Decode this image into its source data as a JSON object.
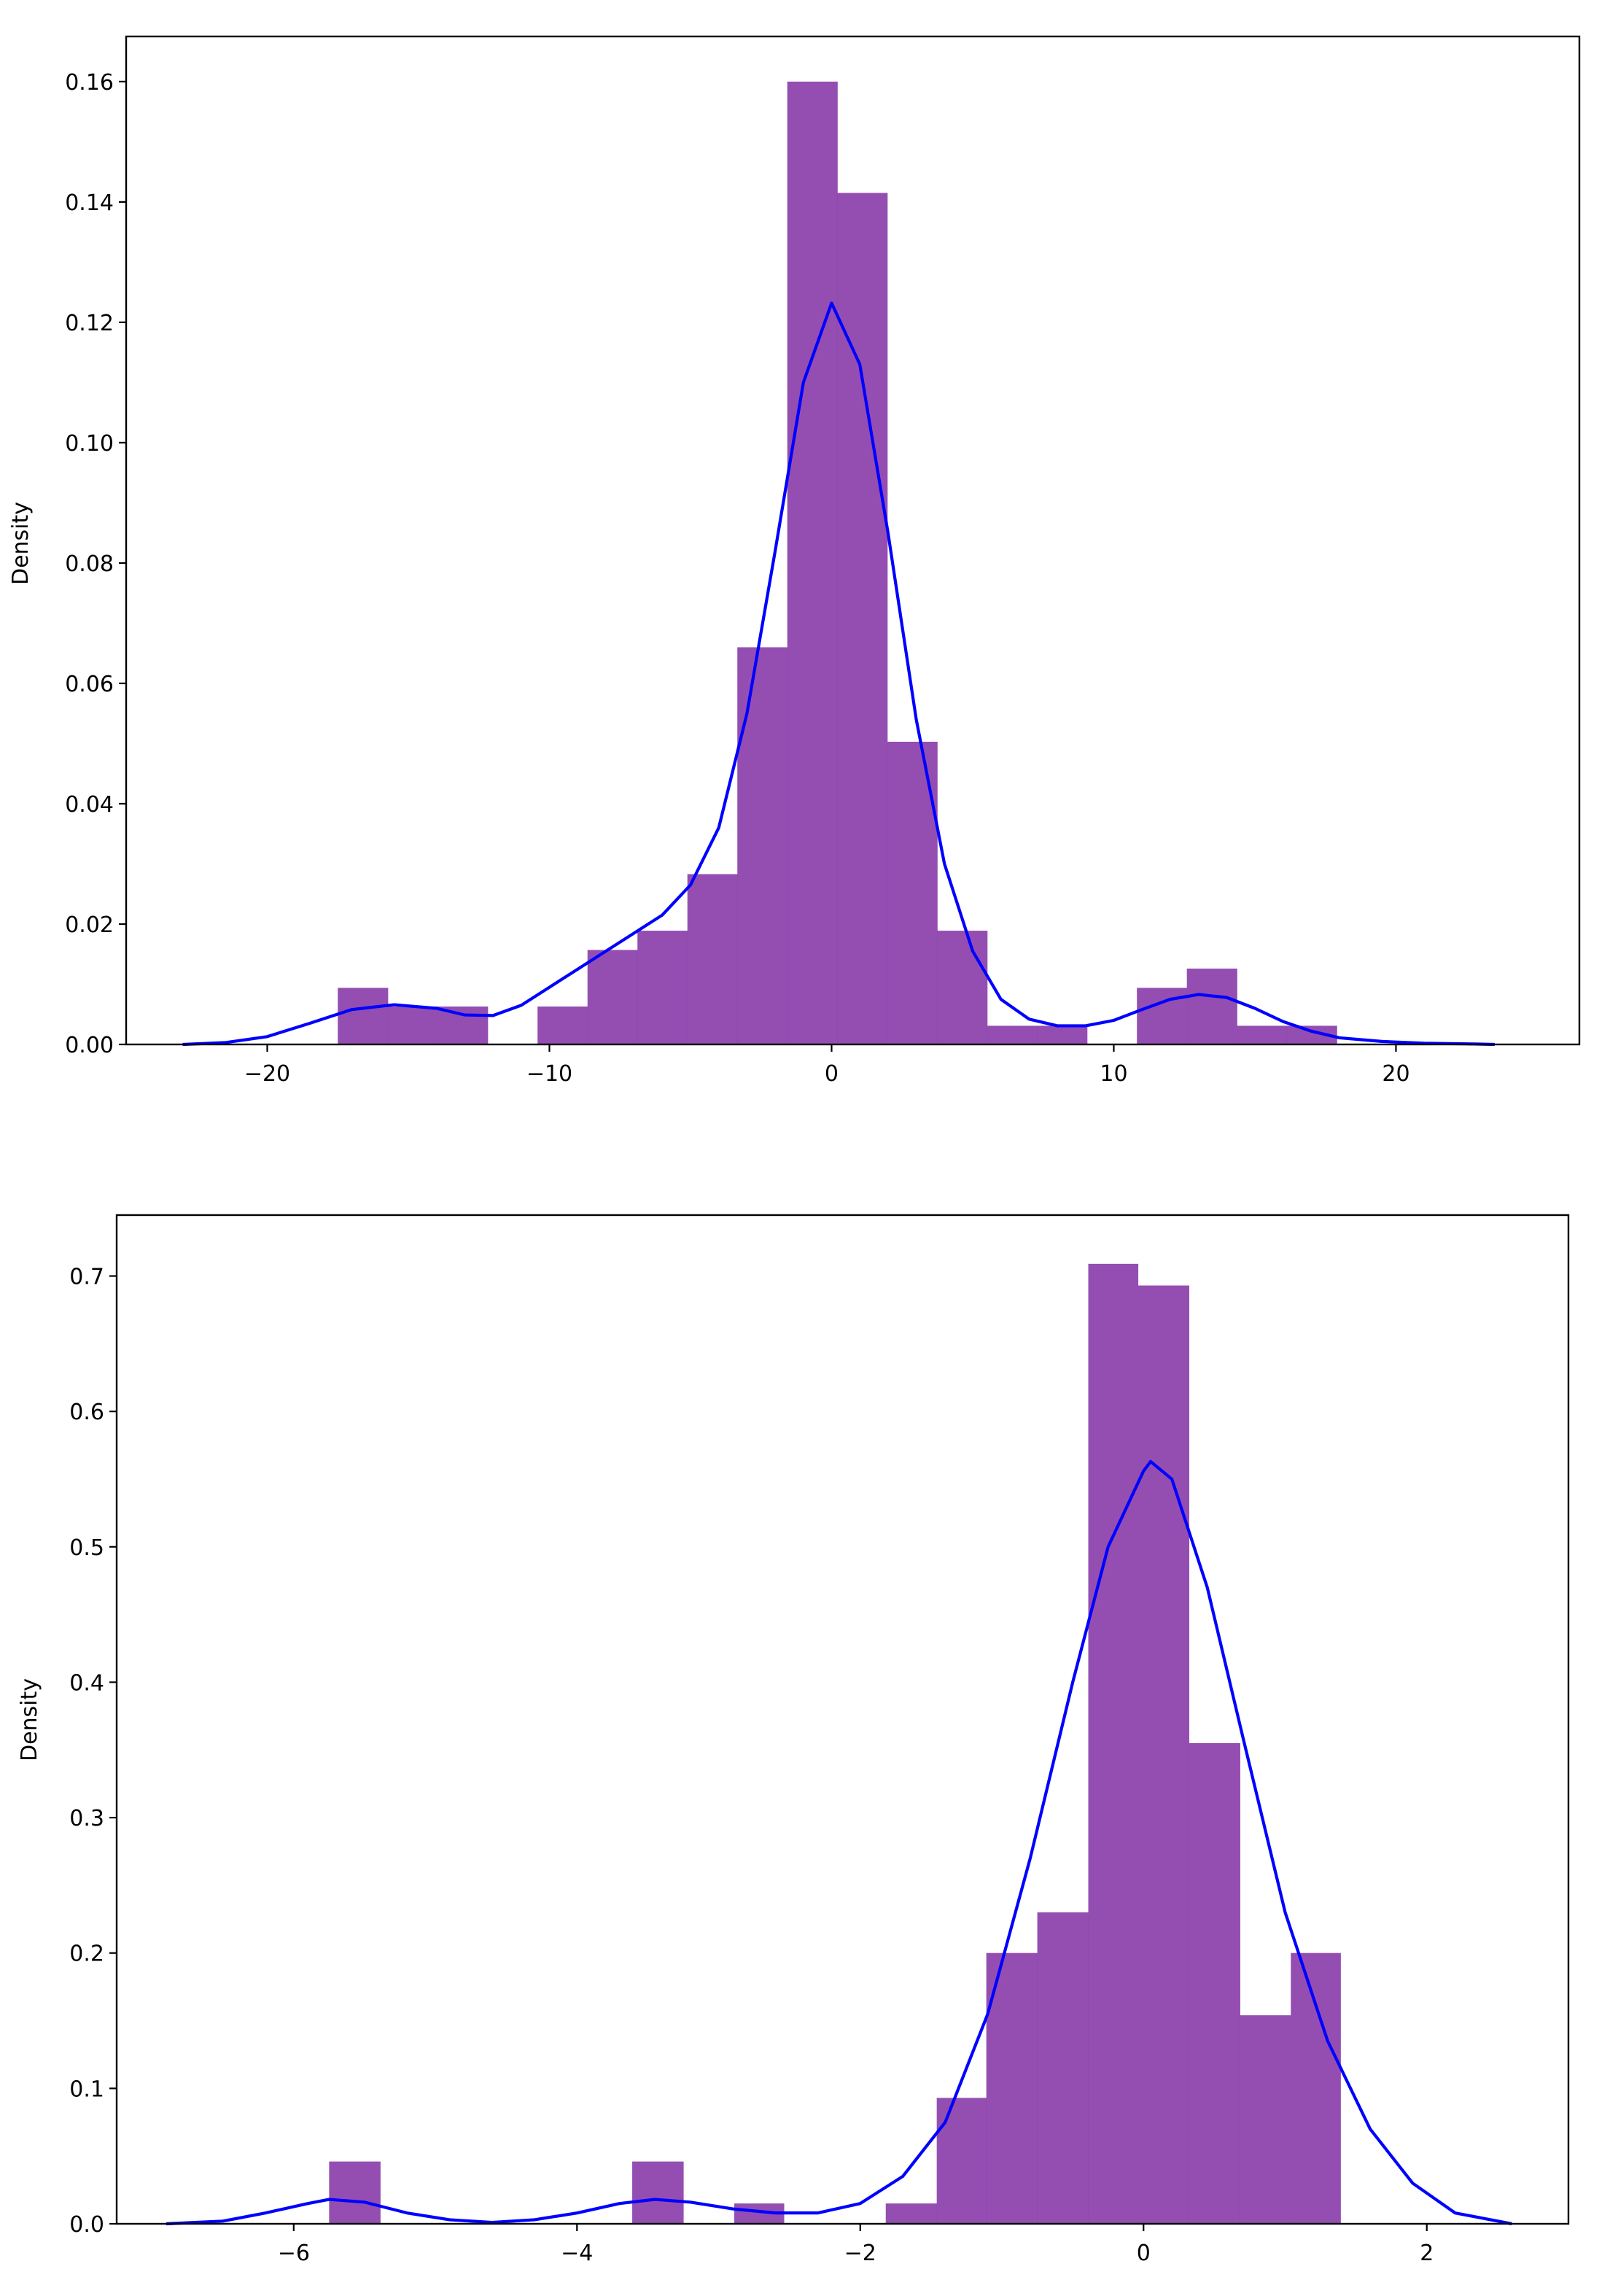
{
  "chart_data": [
    {
      "type": "bar",
      "subtype": "histogram-with-kde",
      "title": "",
      "xlabel": "",
      "ylabel": "Density",
      "xlim": [
        -25,
        26.5
      ],
      "ylim": [
        0,
        0.1675
      ],
      "xticks": [
        -20,
        -10,
        0,
        10,
        20
      ],
      "xtick_labels": [
        "−20",
        "−10",
        "0",
        "10",
        "20"
      ],
      "yticks": [
        0.0,
        0.02,
        0.04,
        0.06,
        0.08,
        0.1,
        0.12,
        0.14,
        0.16
      ],
      "ytick_labels": [
        "0.00",
        "0.02",
        "0.04",
        "0.06",
        "0.08",
        "0.10",
        "0.12",
        "0.14",
        "0.16"
      ],
      "grid": false,
      "bar_color": "#8e44ad",
      "line_color": "#0000ff",
      "bins": [
        {
          "x0": -17.5,
          "x1": -15.73,
          "density": 0.0094
        },
        {
          "x0": -15.73,
          "x1": -13.96,
          "density": 0.0063
        },
        {
          "x0": -13.96,
          "x1": -12.19,
          "density": 0.0063
        },
        {
          "x0": -12.19,
          "x1": -10.42,
          "density": 0.0
        },
        {
          "x0": -10.42,
          "x1": -8.65,
          "density": 0.0063
        },
        {
          "x0": -8.65,
          "x1": -6.88,
          "density": 0.0157
        },
        {
          "x0": -6.88,
          "x1": -5.11,
          "density": 0.0189
        },
        {
          "x0": -5.11,
          "x1": -3.34,
          "density": 0.0283
        },
        {
          "x0": -3.34,
          "x1": -1.57,
          "density": 0.066
        },
        {
          "x0": -1.57,
          "x1": 0.2,
          "density": 0.16
        },
        {
          "x0": 0.2,
          "x1": 1.97,
          "density": 0.1415
        },
        {
          "x0": 1.97,
          "x1": 3.74,
          "density": 0.0503
        },
        {
          "x0": 3.74,
          "x1": 5.51,
          "density": 0.0189
        },
        {
          "x0": 5.51,
          "x1": 7.28,
          "density": 0.0031
        },
        {
          "x0": 7.28,
          "x1": 9.05,
          "density": 0.0031
        },
        {
          "x0": 9.05,
          "x1": 10.82,
          "density": 0.0
        },
        {
          "x0": 10.82,
          "x1": 12.59,
          "density": 0.0094
        },
        {
          "x0": 12.59,
          "x1": 14.36,
          "density": 0.0126
        },
        {
          "x0": 14.36,
          "x1": 16.13,
          "density": 0.0031
        },
        {
          "x0": 16.13,
          "x1": 17.9,
          "density": 0.0031
        }
      ],
      "kde": [
        [
          -23.0,
          0.0
        ],
        [
          -21.5,
          0.0003
        ],
        [
          -20.0,
          0.0013
        ],
        [
          -18.5,
          0.0035
        ],
        [
          -17.0,
          0.0058
        ],
        [
          -15.5,
          0.0066
        ],
        [
          -14.0,
          0.006
        ],
        [
          -13.0,
          0.0049
        ],
        [
          -12.0,
          0.0048
        ],
        [
          -11.0,
          0.0065
        ],
        [
          -10.0,
          0.0095
        ],
        [
          -9.0,
          0.0125
        ],
        [
          -8.0,
          0.0155
        ],
        [
          -7.0,
          0.0185
        ],
        [
          -6.0,
          0.0215
        ],
        [
          -5.0,
          0.0265
        ],
        [
          -4.0,
          0.036
        ],
        [
          -3.0,
          0.055
        ],
        [
          -2.0,
          0.082
        ],
        [
          -1.0,
          0.11
        ],
        [
          0.0,
          0.1232
        ],
        [
          1.0,
          0.113
        ],
        [
          2.0,
          0.085
        ],
        [
          3.0,
          0.054
        ],
        [
          4.0,
          0.03
        ],
        [
          5.0,
          0.0155
        ],
        [
          6.0,
          0.0075
        ],
        [
          7.0,
          0.0042
        ],
        [
          8.0,
          0.0031
        ],
        [
          9.0,
          0.0031
        ],
        [
          10.0,
          0.004
        ],
        [
          11.0,
          0.0058
        ],
        [
          12.0,
          0.0075
        ],
        [
          13.0,
          0.0083
        ],
        [
          14.0,
          0.0078
        ],
        [
          15.0,
          0.006
        ],
        [
          16.0,
          0.0038
        ],
        [
          17.0,
          0.0022
        ],
        [
          18.0,
          0.0011
        ],
        [
          19.5,
          0.0005
        ],
        [
          21.0,
          0.0002
        ],
        [
          22.5,
          0.0001
        ],
        [
          23.5,
          0.0
        ]
      ]
    },
    {
      "type": "bar",
      "subtype": "histogram-with-kde",
      "title": "",
      "xlabel": "",
      "ylabel": "Density",
      "xlim": [
        -7.25,
        3.0
      ],
      "ylim": [
        0,
        0.745
      ],
      "xticks": [
        -6,
        -4,
        -2,
        0,
        2
      ],
      "xtick_labels": [
        "−6",
        "−4",
        "−2",
        "0",
        "2"
      ],
      "yticks": [
        0.0,
        0.1,
        0.2,
        0.3,
        0.4,
        0.5,
        0.6,
        0.7
      ],
      "ytick_labels": [
        "0.0",
        "0.1",
        "0.2",
        "0.3",
        "0.4",
        "0.5",
        "0.6",
        "0.7"
      ],
      "grid": false,
      "bar_color": "#8e44ad",
      "line_color": "#0000ff",
      "bins": [
        {
          "x0": -5.75,
          "x1": -5.39,
          "density": 0.046
        },
        {
          "x0": -5.39,
          "x1": -5.04,
          "density": 0.0
        },
        {
          "x0": -5.04,
          "x1": -4.68,
          "density": 0.0
        },
        {
          "x0": -4.68,
          "x1": -4.32,
          "density": 0.0
        },
        {
          "x0": -4.32,
          "x1": -3.96,
          "density": 0.0
        },
        {
          "x0": -3.96,
          "x1": -3.61,
          "density": 0.0
        },
        {
          "x0": -3.61,
          "x1": -3.25,
          "density": 0.046
        },
        {
          "x0": -3.25,
          "x1": -2.89,
          "density": 0.0
        },
        {
          "x0": -2.89,
          "x1": -2.54,
          "density": 0.015
        },
        {
          "x0": -2.54,
          "x1": -2.18,
          "density": 0.0
        },
        {
          "x0": -2.18,
          "x1": -1.82,
          "density": 0.0
        },
        {
          "x0": -1.82,
          "x1": -1.46,
          "density": 0.015
        },
        {
          "x0": -1.46,
          "x1": -1.11,
          "density": 0.093
        },
        {
          "x0": -1.11,
          "x1": -0.75,
          "density": 0.2
        },
        {
          "x0": -0.75,
          "x1": -0.39,
          "density": 0.23
        },
        {
          "x0": -0.39,
          "x1": -0.04,
          "density": 0.709
        },
        {
          "x0": -0.04,
          "x1": 0.32,
          "density": 0.693
        },
        {
          "x0": 0.32,
          "x1": 0.68,
          "density": 0.355
        },
        {
          "x0": 0.68,
          "x1": 1.04,
          "density": 0.154
        },
        {
          "x0": 1.04,
          "x1": 1.39,
          "density": 0.2
        }
      ],
      "kde": [
        [
          -6.9,
          0.0
        ],
        [
          -6.5,
          0.002
        ],
        [
          -6.2,
          0.008
        ],
        [
          -5.9,
          0.015
        ],
        [
          -5.75,
          0.018
        ],
        [
          -5.5,
          0.016
        ],
        [
          -5.2,
          0.008
        ],
        [
          -4.9,
          0.003
        ],
        [
          -4.6,
          0.001
        ],
        [
          -4.3,
          0.003
        ],
        [
          -4.0,
          0.008
        ],
        [
          -3.7,
          0.015
        ],
        [
          -3.45,
          0.018
        ],
        [
          -3.2,
          0.016
        ],
        [
          -2.9,
          0.011
        ],
        [
          -2.6,
          0.008
        ],
        [
          -2.3,
          0.008
        ],
        [
          -2.0,
          0.015
        ],
        [
          -1.7,
          0.035
        ],
        [
          -1.4,
          0.075
        ],
        [
          -1.1,
          0.155
        ],
        [
          -0.8,
          0.27
        ],
        [
          -0.5,
          0.4
        ],
        [
          -0.25,
          0.5
        ],
        [
          0.0,
          0.556
        ],
        [
          0.05,
          0.563
        ],
        [
          0.2,
          0.55
        ],
        [
          0.45,
          0.47
        ],
        [
          0.7,
          0.36
        ],
        [
          1.0,
          0.23
        ],
        [
          1.3,
          0.135
        ],
        [
          1.6,
          0.07
        ],
        [
          1.9,
          0.03
        ],
        [
          2.2,
          0.008
        ],
        [
          2.6,
          0.0
        ]
      ]
    }
  ]
}
